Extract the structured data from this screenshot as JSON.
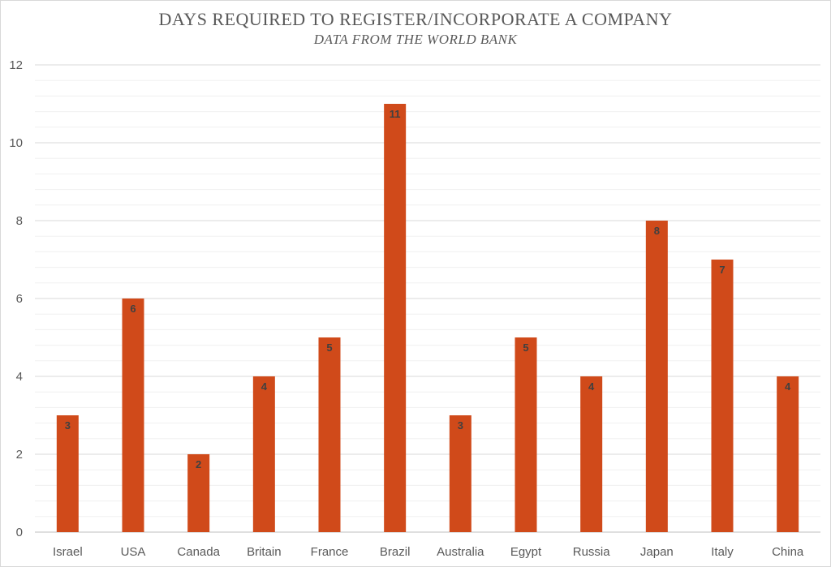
{
  "chart_data": {
    "type": "bar",
    "title": "DAYS REQUIRED TO REGISTER/INCORPORATE A COMPANY",
    "subtitle": "DATA FROM THE WORLD BANK",
    "xlabel": "",
    "ylabel": "",
    "categories": [
      "Israel",
      "USA",
      "Canada",
      "Britain",
      "France",
      "Brazil",
      "Australia",
      "Egypt",
      "Russia",
      "Japan",
      "Italy",
      "China"
    ],
    "values": [
      3,
      6,
      2,
      4,
      5,
      11,
      3,
      5,
      4,
      8,
      7,
      4
    ],
    "ylim": [
      0,
      12
    ],
    "yticks": [
      0,
      2,
      4,
      6,
      8,
      10,
      12
    ],
    "minor_grid_step": 0.4,
    "grid": true,
    "data_labels": true,
    "bar_color": "#D04A1A",
    "legend": "none"
  }
}
